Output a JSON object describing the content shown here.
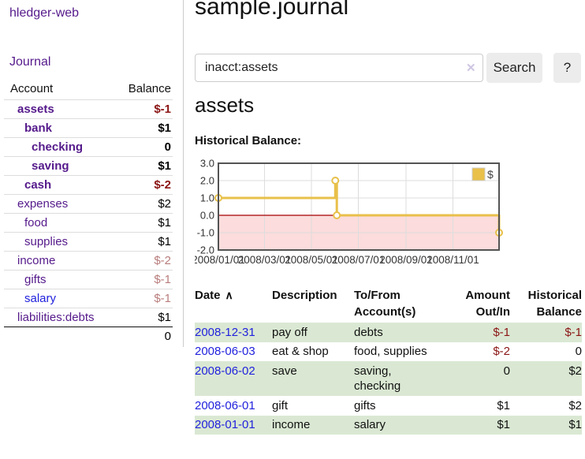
{
  "header": {
    "title": "sample.journal"
  },
  "sidebar": {
    "brand": "hledger-web",
    "journal_link": "Journal",
    "table": {
      "account_header": "Account",
      "balance_header": "Balance"
    },
    "accounts": [
      {
        "name": "assets",
        "balance": "$-1",
        "indent": 1,
        "bold": true,
        "negative": "strong"
      },
      {
        "name": "bank",
        "balance": "$1",
        "indent": 2,
        "bold": true
      },
      {
        "name": "checking",
        "balance": "0",
        "indent": 3,
        "bold": true
      },
      {
        "name": "saving",
        "balance": "$1",
        "indent": 3,
        "bold": true
      },
      {
        "name": "cash",
        "balance": "$-2",
        "indent": 2,
        "bold": true,
        "negative": "strong"
      },
      {
        "name": "expenses",
        "balance": "$2",
        "indent": 1
      },
      {
        "name": "food",
        "balance": "$1",
        "indent": 2
      },
      {
        "name": "supplies",
        "balance": "$1",
        "indent": 2
      },
      {
        "name": "income",
        "balance": "$-2",
        "indent": 1,
        "negative": "muted"
      },
      {
        "name": "gifts",
        "balance": "$-1",
        "indent": 2,
        "negative": "muted"
      },
      {
        "name": "salary",
        "balance": "$-1",
        "indent": 2,
        "negative": "muted",
        "blue": true
      },
      {
        "name": "liabilities:debts",
        "balance": "$1",
        "indent": 1
      }
    ],
    "total": "0"
  },
  "search": {
    "value": "inacct:assets",
    "clear_icon": "✕",
    "button_label": "Search",
    "help_label": "?"
  },
  "account_view": {
    "heading": "assets",
    "chart_title": "Historical Balance:"
  },
  "chart_data": {
    "type": "line",
    "step": true,
    "title": "Historical Balance:",
    "series": [
      {
        "name": "$",
        "points": [
          [
            "2008-01-01",
            1
          ],
          [
            "2008-06-01",
            2
          ],
          [
            "2008-06-03",
            0
          ],
          [
            "2008-12-31",
            -1
          ]
        ]
      }
    ],
    "ylim": [
      -2,
      3
    ],
    "yticks": [
      3,
      2,
      1,
      0,
      -1,
      -2
    ],
    "xrange": [
      "2008-01-01",
      "2008-12-31"
    ],
    "xticks": [
      {
        "date": "2008-01-01",
        "label": "2008/01/01"
      },
      {
        "date": "2008-03-01",
        "label": "2008/03/01"
      },
      {
        "date": "2008-05-01",
        "label": "2008/05/01"
      },
      {
        "date": "2008-07-01",
        "label": "2008/07/01"
      },
      {
        "date": "2008-09-01",
        "label": "2008/09/01"
      },
      {
        "date": "2008-11-01",
        "label": "2008/11/01"
      }
    ],
    "legend_position": "top-right",
    "grid": true
  },
  "register": {
    "sort_icon": "∧",
    "columns": {
      "date": "Date",
      "description": "Description",
      "accounts": "To/From Account(s)",
      "amount": "Amount Out/In",
      "balance": "Historical Balance"
    },
    "rows": [
      {
        "date": "2008-12-31",
        "description": "pay off",
        "accounts": "debts",
        "amount": "$-1",
        "balance": "$-1"
      },
      {
        "date": "2008-06-03",
        "description": "eat & shop",
        "accounts": "food, supplies",
        "amount": "$-2",
        "balance": "0"
      },
      {
        "date": "2008-06-02",
        "description": "save",
        "accounts": "saving,\nchecking",
        "amount": "0",
        "balance": "$2"
      },
      {
        "date": "2008-06-01",
        "description": "gift",
        "accounts": "gifts",
        "amount": "$1",
        "balance": "$2"
      },
      {
        "date": "2008-01-01",
        "description": "income",
        "accounts": "salary",
        "amount": "$1",
        "balance": "$1"
      }
    ]
  },
  "colors": {
    "link_purple": "#551a8b",
    "link_blue": "#2222dd",
    "negative_strong": "#8b1515",
    "negative_muted": "#b97c7c",
    "row_green": "#dae8d3",
    "button_bg": "#ececec",
    "chart_line": "#e8c04a",
    "chart_negative_fill": "#fcdcdc",
    "chart_zero_line": "#a40000",
    "chart_border": "#545454",
    "chart_grid": "#dddddd"
  }
}
